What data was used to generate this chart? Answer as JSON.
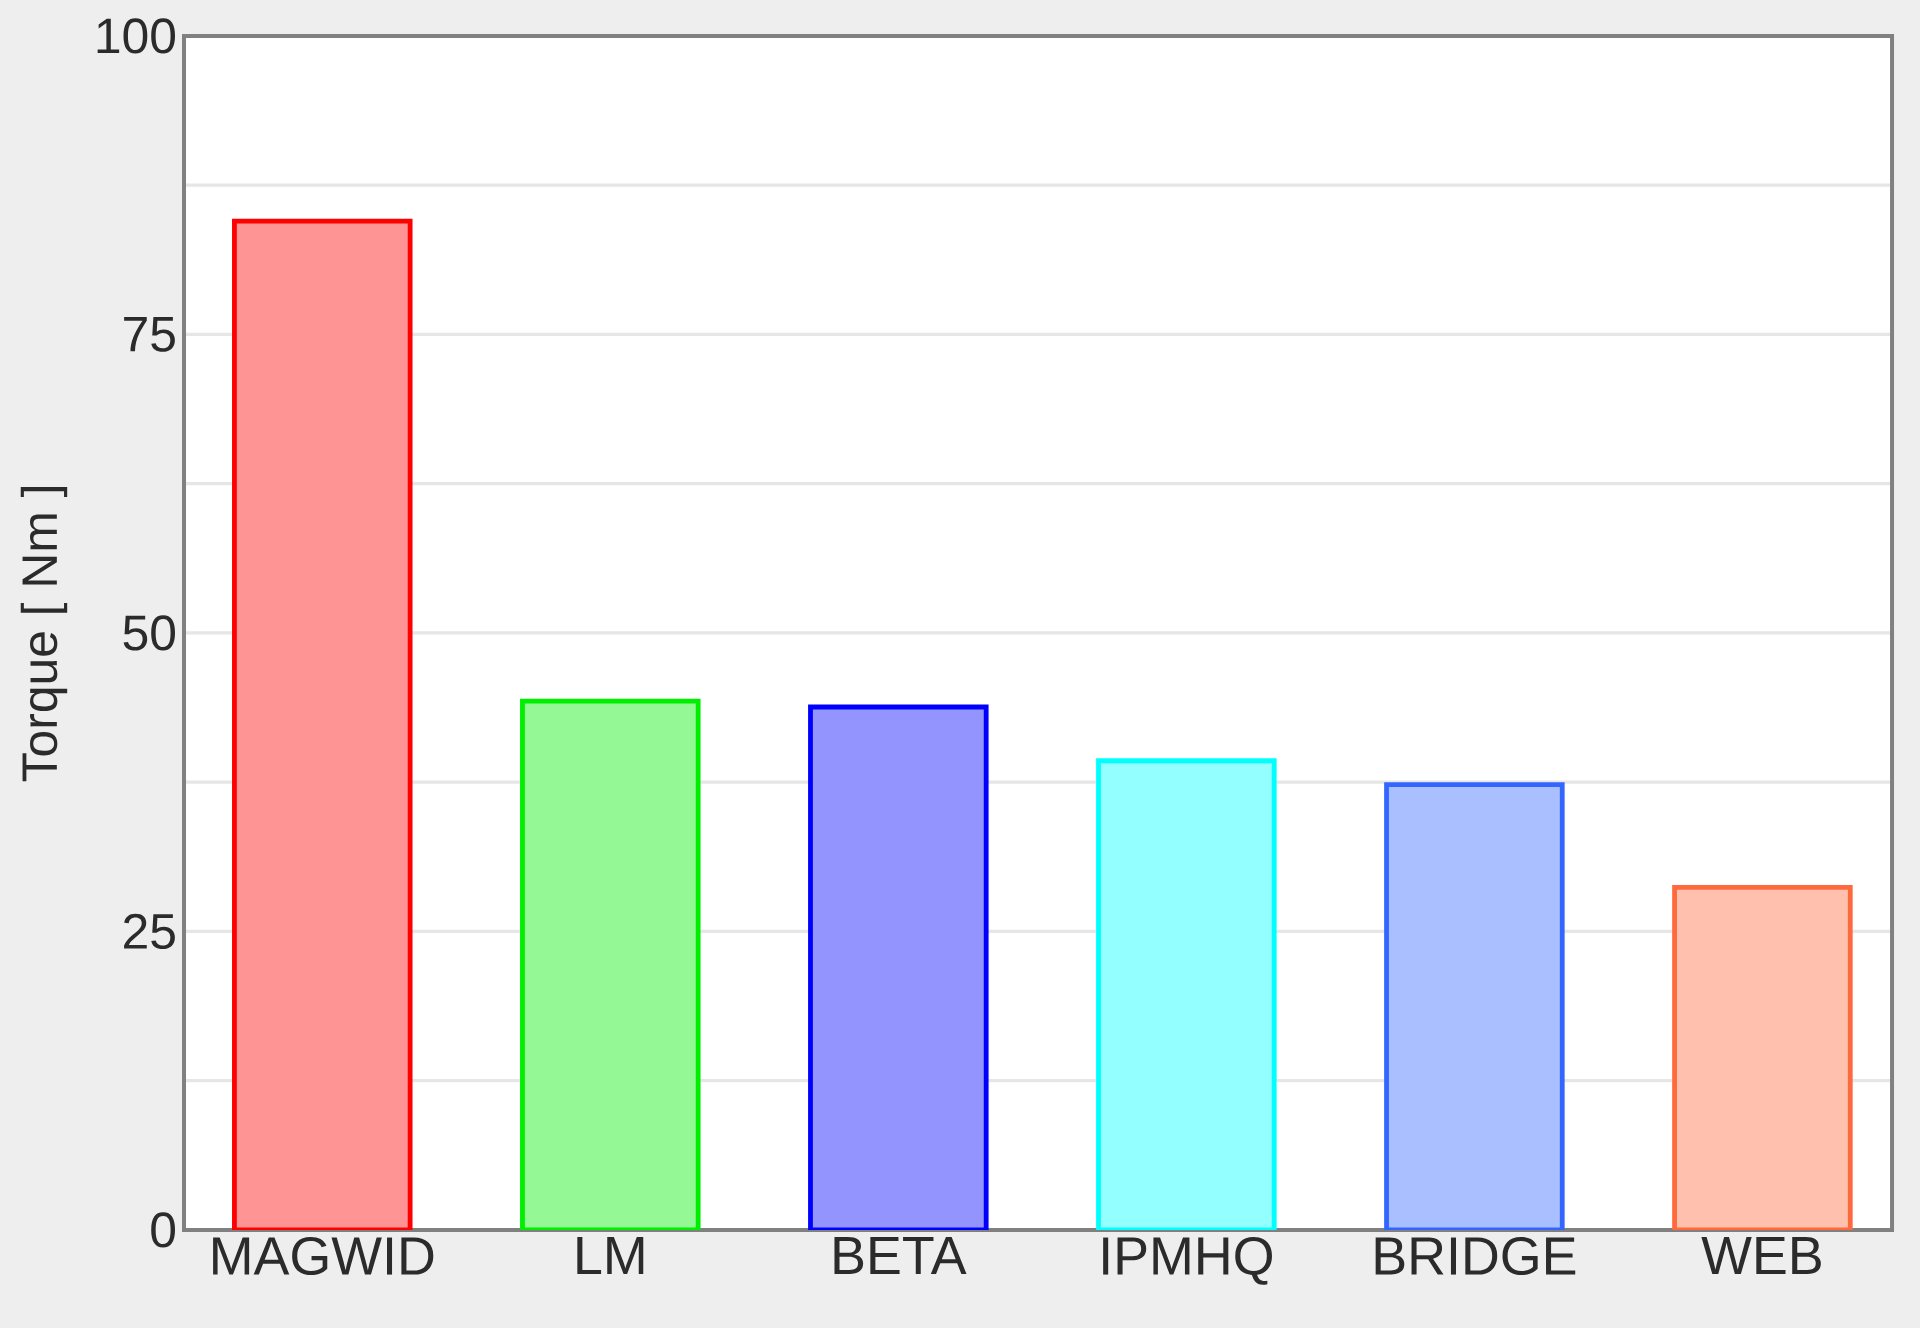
{
  "chart_data": {
    "type": "bar",
    "ylabel": "Torque [ Nm ]",
    "categories": [
      "MAGWID",
      "LM",
      "BETA",
      "IPMHQ",
      "BRIDGE",
      "WEB"
    ],
    "values": [
      84.5,
      44.3,
      43.8,
      39.3,
      37.3,
      28.7
    ],
    "colors": [
      "#ff0000",
      "#00ee00",
      "#0000ff",
      "#00ffff",
      "#3366ff",
      "#ff6a3d"
    ],
    "ylim": [
      0,
      100
    ],
    "yticks": [
      0,
      {
        "value": 12.5,
        "label": null
      },
      25,
      {
        "value": 37.5,
        "label": null
      },
      50,
      {
        "value": 62.5,
        "label": null
      },
      75,
      {
        "value": 87.5,
        "label": null
      },
      100
    ],
    "grid": "y"
  }
}
